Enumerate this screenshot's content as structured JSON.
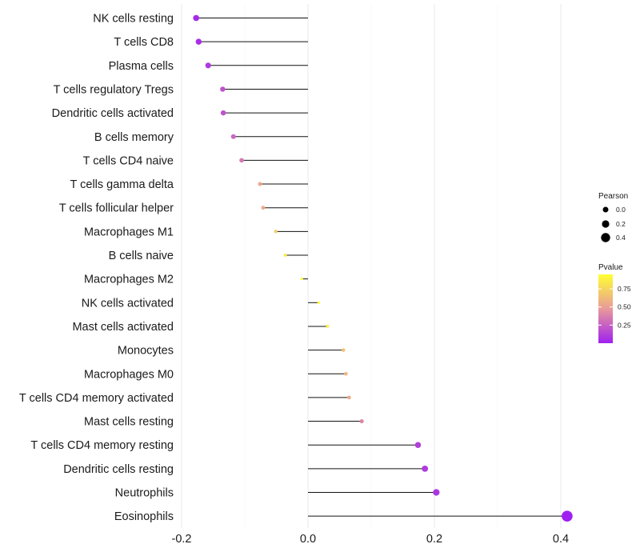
{
  "chart_data": {
    "type": "lollipop",
    "title": "",
    "xlabel": "",
    "ylabel": "",
    "xlim": [
      -0.2,
      0.41
    ],
    "x_ticks": [
      -0.2,
      0.0,
      0.2,
      0.4
    ],
    "x_tick_labels": [
      "-0.2",
      "0.0",
      "0.2",
      "0.4"
    ],
    "grid": true,
    "categories": [
      "NK cells resting",
      "T cells CD8",
      "Plasma cells",
      "T cells regulatory  Tregs ",
      "Dendritic cells activated",
      "B cells memory",
      "T cells CD4 naive",
      "T cells gamma delta",
      "T cells follicular helper",
      "Macrophages M1",
      "B cells naive",
      "Macrophages M2",
      "NK cells activated",
      "Mast cells activated",
      "Monocytes",
      "Macrophages M0",
      "T cells CD4 memory activated",
      "Mast cells resting",
      "T cells CD4 memory resting",
      "Dendritic cells resting",
      "Neutrophils",
      "Eosinophils"
    ],
    "values": [
      -0.177,
      -0.173,
      -0.158,
      -0.135,
      -0.134,
      -0.118,
      -0.105,
      -0.076,
      -0.071,
      -0.051,
      -0.036,
      -0.01,
      0.017,
      0.031,
      0.056,
      0.06,
      0.065,
      0.085,
      0.174,
      0.185,
      0.203,
      0.41
    ],
    "pvalues": [
      0.04,
      0.05,
      0.1,
      0.2,
      0.2,
      0.28,
      0.35,
      0.55,
      0.55,
      0.7,
      0.85,
      0.95,
      0.95,
      0.88,
      0.65,
      0.6,
      0.55,
      0.4,
      0.12,
      0.1,
      0.08,
      0.0005
    ],
    "legend_position": "right",
    "size_legend": {
      "title": "Pearson",
      "breaks": [
        0.0,
        0.2,
        0.4
      ],
      "labels": [
        "0.0",
        "0.2",
        "0.4"
      ]
    },
    "color_legend": {
      "title": "Pvalue",
      "breaks": [
        0.25,
        0.5,
        0.75
      ],
      "labels": [
        "0.25",
        "0.50",
        "0.75"
      ],
      "range": [
        0.0,
        0.95
      ],
      "low_color": "#A020F0",
      "mid_color": "#E89A9A",
      "high_color": "#FFFF33"
    }
  }
}
